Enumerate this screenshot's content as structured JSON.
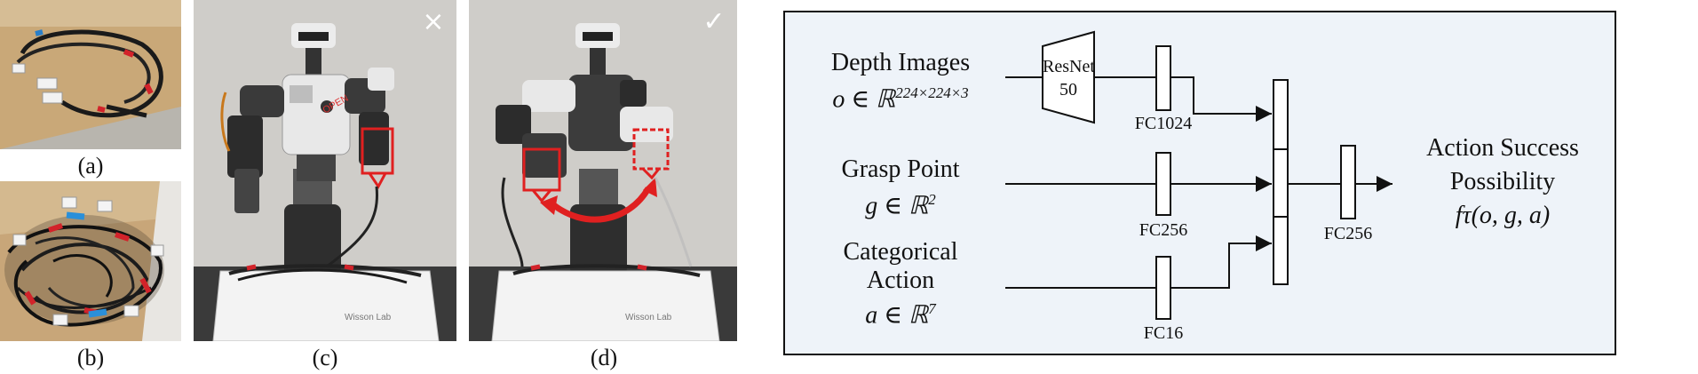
{
  "figure": {
    "subfigures": [
      {
        "id": "a",
        "caption": "(a)",
        "content": "coiled wire harness on cardboard"
      },
      {
        "id": "b",
        "caption": "(b)",
        "content": "tangled wire harnesses in a box"
      },
      {
        "id": "c",
        "caption": "(c)",
        "content": "robot holding harness",
        "mark": "×"
      },
      {
        "id": "d",
        "caption": "(d)",
        "content": "robot transferring harness",
        "mark": "✓"
      }
    ],
    "box_logo_text": "Wisson Lab"
  },
  "diagram": {
    "inputs": {
      "depth": {
        "title": "Depth Images",
        "var": "o ∈ ℝ",
        "sup": "224×224×3"
      },
      "grasp": {
        "title": "Grasp Point",
        "var": "g ∈ ℝ",
        "sup": "2"
      },
      "action": {
        "title1": "Categorical",
        "title2": "Action",
        "var": "a ∈ ℝ",
        "sup": "7"
      }
    },
    "resnet": {
      "line1": "ResNet",
      "line2": "50"
    },
    "layers": {
      "fc_depth": "FC1024",
      "fc_grasp": "FC256",
      "fc_action": "FC16",
      "fc_out": "FC256"
    },
    "output": {
      "line1": "Action Success",
      "line2": "Possibility",
      "formula": "fτ(o, g, a)"
    }
  }
}
